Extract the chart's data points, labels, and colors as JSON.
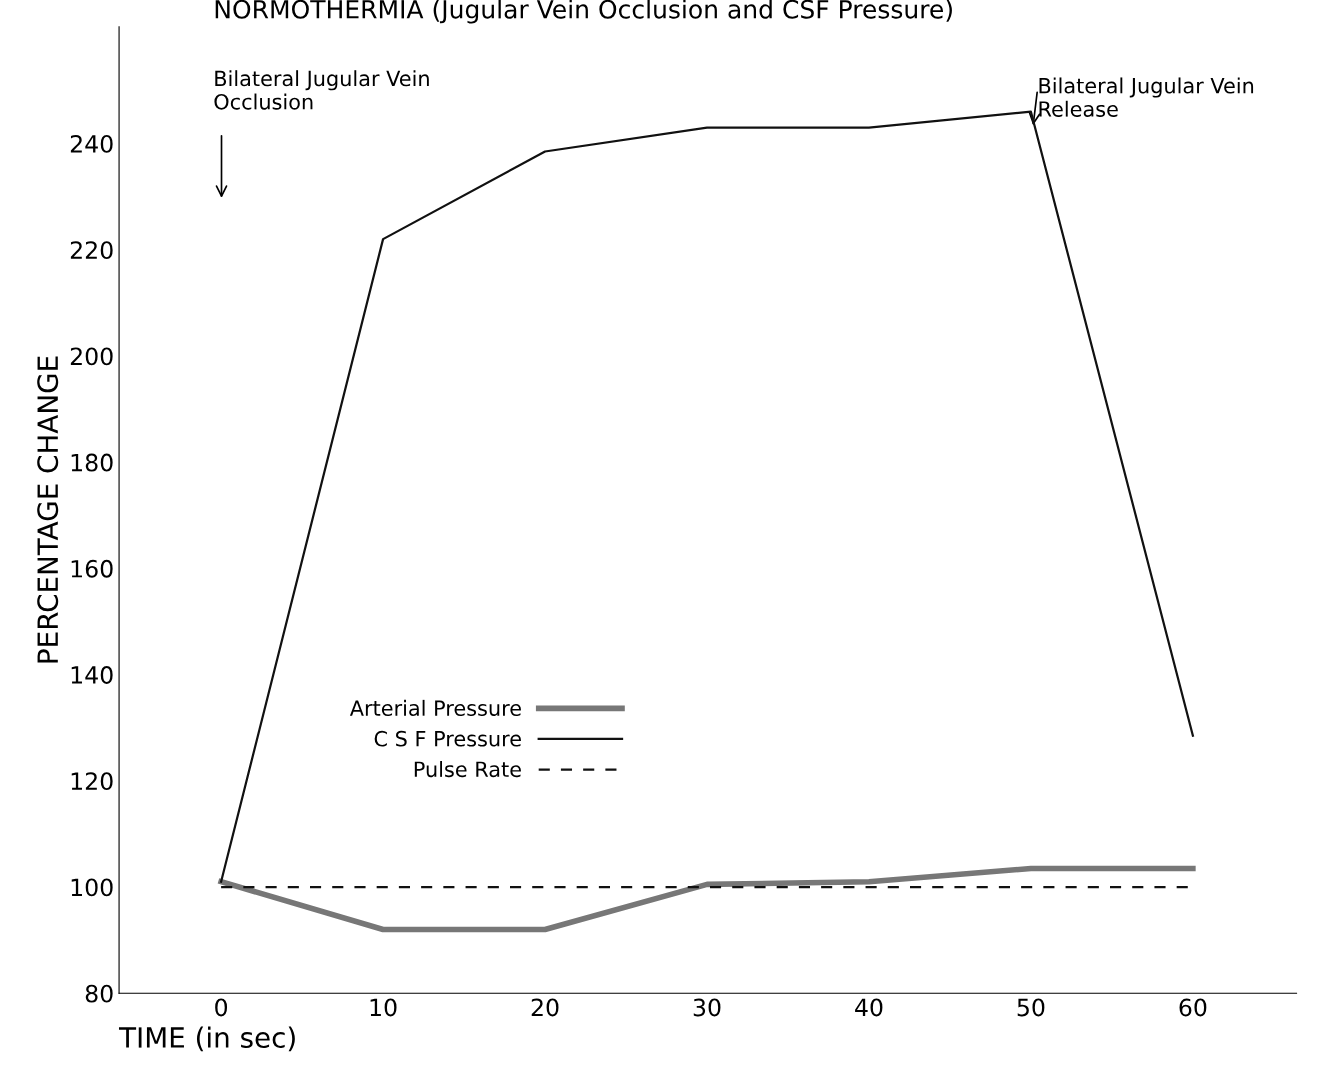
{
  "chart_data": {
    "type": "line",
    "title": "NORMOTHERMIA (Jugular Vein Occlusion and CSF Pressure)",
    "xlabel": "TIME (in sec)",
    "ylabel": "PERCENTAGE CHANGE",
    "x": [
      0,
      10,
      20,
      30,
      40,
      50,
      60
    ],
    "series": [
      {
        "name": "Arterial Pressure",
        "color": "#777777",
        "values": [
          101,
          92,
          92,
          100.5,
          101,
          103.5,
          103.5
        ],
        "line_style": "solid"
      },
      {
        "name": "C S F Pressure",
        "color": "#111111",
        "values": [
          101,
          222,
          238.5,
          243,
          243,
          246,
          128.5
        ],
        "line_style": "solid"
      },
      {
        "name": "Pulse Rate",
        "color": "#111111",
        "values": [
          100,
          100,
          100,
          100,
          100,
          100,
          100
        ],
        "line_style": "dashed"
      }
    ],
    "xlim": [
      -6.3,
      66.4
    ],
    "ylim": [
      80,
      262
    ],
    "xticks": [
      0,
      10,
      20,
      30,
      40,
      50,
      60
    ],
    "yticks": [
      80,
      100,
      120,
      140,
      160,
      180,
      200,
      220,
      240
    ],
    "grid": false,
    "legend": "lower left",
    "marker": "none",
    "annotations": [
      "Bilateral Jugular Vein\nOcclusion",
      "Bilateral Jugular Vein\nRelease"
    ]
  }
}
